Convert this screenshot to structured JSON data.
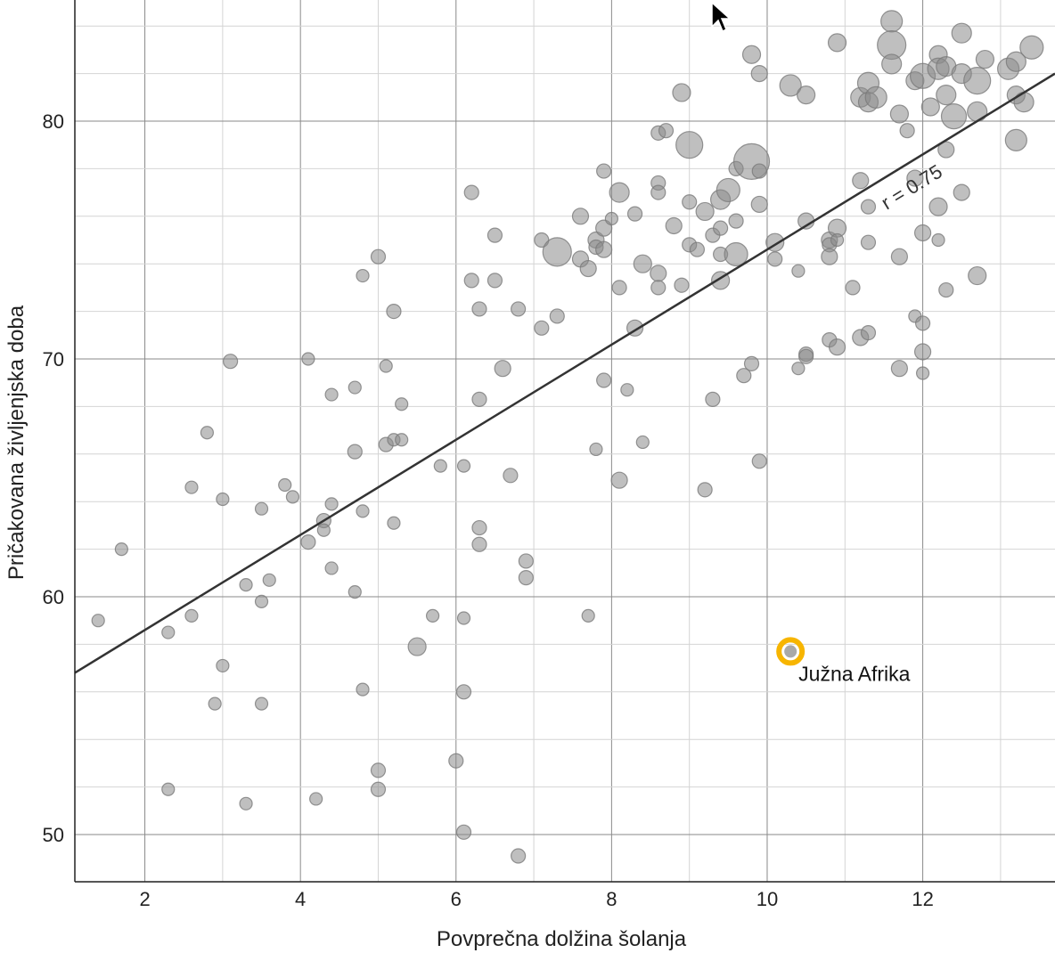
{
  "chart_data": {
    "type": "scatter",
    "xlabel": "Povprečna dolžina šolanja",
    "ylabel": "Pričakovana življenjska doba",
    "xlim": [
      1.1,
      13.7
    ],
    "ylim": [
      48,
      85
    ],
    "xticks": [
      2,
      4,
      6,
      8,
      10,
      12
    ],
    "yticks": [
      50,
      60,
      70,
      80
    ],
    "x_minor_step": 1,
    "y_minor_step": 2,
    "grid": true,
    "trendline": {
      "from": [
        1.1,
        56.8
      ],
      "to": [
        13.7,
        82
      ],
      "label": "r = 0.75"
    },
    "highlight": {
      "label": "Južna Afrika",
      "x": 10.3,
      "y": 57.7,
      "color": "#f7b500"
    },
    "points": [
      [
        1.4,
        59,
        7
      ],
      [
        1.7,
        62,
        7
      ],
      [
        2.3,
        58.5,
        7
      ],
      [
        2.3,
        51.9,
        7
      ],
      [
        2.6,
        64.6,
        7
      ],
      [
        2.6,
        59.2,
        7
      ],
      [
        2.8,
        66.9,
        7
      ],
      [
        2.9,
        55.5,
        7
      ],
      [
        3.0,
        64.1,
        7
      ],
      [
        3.0,
        57.1,
        7
      ],
      [
        3.1,
        69.9,
        8
      ],
      [
        3.3,
        60.5,
        7
      ],
      [
        3.3,
        51.3,
        7
      ],
      [
        3.5,
        63.7,
        7
      ],
      [
        3.5,
        59.8,
        7
      ],
      [
        3.5,
        55.5,
        7
      ],
      [
        3.6,
        60.7,
        7
      ],
      [
        3.8,
        64.7,
        7
      ],
      [
        3.9,
        64.2,
        7
      ],
      [
        4.1,
        70,
        7
      ],
      [
        4.1,
        62.3,
        8
      ],
      [
        4.2,
        51.5,
        7
      ],
      [
        4.3,
        63.2,
        8
      ],
      [
        4.3,
        62.8,
        7
      ],
      [
        4.4,
        68.5,
        7
      ],
      [
        4.4,
        63.9,
        7
      ],
      [
        4.4,
        61.2,
        7
      ],
      [
        4.7,
        68.8,
        7
      ],
      [
        4.7,
        66.1,
        8
      ],
      [
        4.7,
        60.2,
        7
      ],
      [
        4.8,
        73.5,
        7
      ],
      [
        4.8,
        63.6,
        7
      ],
      [
        4.8,
        56.1,
        7
      ],
      [
        5.0,
        74.3,
        8
      ],
      [
        5.0,
        52.7,
        8
      ],
      [
        5.0,
        51.9,
        8
      ],
      [
        5.1,
        69.7,
        7
      ],
      [
        5.1,
        66.4,
        8
      ],
      [
        5.2,
        72,
        8
      ],
      [
        5.2,
        66.6,
        7
      ],
      [
        5.2,
        63.1,
        7
      ],
      [
        5.3,
        68.1,
        7
      ],
      [
        5.3,
        66.6,
        7
      ],
      [
        5.5,
        57.9,
        10
      ],
      [
        5.7,
        59.2,
        7
      ],
      [
        5.8,
        65.5,
        7
      ],
      [
        6.0,
        53.1,
        8
      ],
      [
        6.1,
        65.5,
        7
      ],
      [
        6.1,
        59.1,
        7
      ],
      [
        6.1,
        56,
        8
      ],
      [
        6.1,
        50.1,
        8
      ],
      [
        6.2,
        77,
        8
      ],
      [
        6.2,
        73.3,
        8
      ],
      [
        6.3,
        72.1,
        8
      ],
      [
        6.3,
        68.3,
        8
      ],
      [
        6.3,
        62.9,
        8
      ],
      [
        6.3,
        62.2,
        8
      ],
      [
        6.5,
        75.2,
        8
      ],
      [
        6.5,
        73.3,
        8
      ],
      [
        6.6,
        69.6,
        9
      ],
      [
        6.7,
        65.1,
        8
      ],
      [
        6.8,
        72.1,
        8
      ],
      [
        6.8,
        49.1,
        8
      ],
      [
        6.9,
        61.5,
        8
      ],
      [
        6.9,
        60.8,
        8
      ],
      [
        7.1,
        75,
        8
      ],
      [
        7.1,
        71.3,
        8
      ],
      [
        7.3,
        71.8,
        8
      ],
      [
        7.3,
        74.5,
        16
      ],
      [
        7.6,
        76,
        9
      ],
      [
        7.6,
        74.2,
        9
      ],
      [
        7.7,
        73.8,
        9
      ],
      [
        7.7,
        59.2,
        7
      ],
      [
        7.8,
        75,
        9
      ],
      [
        7.8,
        74.7,
        8
      ],
      [
        7.8,
        66.2,
        7
      ],
      [
        7.9,
        77.9,
        8
      ],
      [
        7.9,
        75.5,
        9
      ],
      [
        7.9,
        74.6,
        9
      ],
      [
        7.9,
        69.1,
        8
      ],
      [
        8.0,
        75.9,
        7
      ],
      [
        8.1,
        77,
        11
      ],
      [
        8.1,
        73,
        8
      ],
      [
        8.1,
        64.9,
        9
      ],
      [
        8.2,
        68.7,
        7
      ],
      [
        8.3,
        76.1,
        8
      ],
      [
        8.3,
        71.3,
        9
      ],
      [
        8.4,
        74,
        10
      ],
      [
        8.4,
        66.5,
        7
      ],
      [
        8.6,
        79.5,
        8
      ],
      [
        8.6,
        77.4,
        8
      ],
      [
        8.6,
        77,
        8
      ],
      [
        8.6,
        73.6,
        9
      ],
      [
        8.6,
        73,
        8
      ],
      [
        8.7,
        79.6,
        8
      ],
      [
        8.8,
        75.6,
        9
      ],
      [
        8.9,
        81.2,
        10
      ],
      [
        8.9,
        73.1,
        8
      ],
      [
        9.0,
        79,
        15
      ],
      [
        9.0,
        76.6,
        8
      ],
      [
        9.0,
        74.8,
        8
      ],
      [
        9.1,
        74.6,
        8
      ],
      [
        9.2,
        76.2,
        10
      ],
      [
        9.2,
        64.5,
        8
      ],
      [
        9.3,
        75.2,
        8
      ],
      [
        9.3,
        68.3,
        8
      ],
      [
        9.4,
        76.7,
        11
      ],
      [
        9.4,
        75.5,
        8
      ],
      [
        9.4,
        74.4,
        8
      ],
      [
        9.4,
        73.3,
        10
      ],
      [
        9.5,
        77.1,
        13
      ],
      [
        9.6,
        78,
        8
      ],
      [
        9.6,
        75.8,
        8
      ],
      [
        9.6,
        74.4,
        13
      ],
      [
        9.7,
        69.3,
        8
      ],
      [
        9.8,
        82.8,
        10
      ],
      [
        9.8,
        78.3,
        20
      ],
      [
        9.8,
        69.8,
        8
      ],
      [
        9.9,
        82,
        9
      ],
      [
        9.9,
        77.9,
        8
      ],
      [
        9.9,
        76.5,
        9
      ],
      [
        9.9,
        65.7,
        8
      ],
      [
        10.1,
        74.9,
        10
      ],
      [
        10.1,
        74.2,
        8
      ],
      [
        10.3,
        81.5,
        12
      ],
      [
        10.4,
        73.7,
        7
      ],
      [
        10.4,
        69.6,
        7
      ],
      [
        10.5,
        81.1,
        10
      ],
      [
        10.5,
        75.8,
        9
      ],
      [
        10.5,
        70.2,
        8
      ],
      [
        10.5,
        70.1,
        8
      ],
      [
        10.8,
        75,
        9
      ],
      [
        10.8,
        74.8,
        8
      ],
      [
        10.8,
        74.3,
        9
      ],
      [
        10.8,
        70.8,
        8
      ],
      [
        10.9,
        83.3,
        10
      ],
      [
        10.9,
        75.5,
        10
      ],
      [
        10.9,
        75,
        7
      ],
      [
        10.9,
        70.5,
        9
      ],
      [
        11.1,
        73,
        8
      ],
      [
        11.2,
        81,
        11
      ],
      [
        11.2,
        77.5,
        9
      ],
      [
        11.2,
        70.9,
        9
      ],
      [
        11.3,
        81.6,
        12
      ],
      [
        11.3,
        80.8,
        11
      ],
      [
        11.3,
        76.4,
        8
      ],
      [
        11.3,
        74.9,
        8
      ],
      [
        11.3,
        71.1,
        8
      ],
      [
        11.4,
        81,
        12
      ],
      [
        11.6,
        84.2,
        12
      ],
      [
        11.6,
        83.2,
        16
      ],
      [
        11.6,
        82.4,
        11
      ],
      [
        11.7,
        80.3,
        10
      ],
      [
        11.7,
        74.3,
        9
      ],
      [
        11.7,
        69.6,
        9
      ],
      [
        11.8,
        79.6,
        8
      ],
      [
        11.9,
        81.7,
        10
      ],
      [
        11.9,
        77.6,
        9
      ],
      [
        11.9,
        71.8,
        7
      ],
      [
        12.0,
        81.9,
        14
      ],
      [
        12.0,
        75.3,
        9
      ],
      [
        12.0,
        71.5,
        8
      ],
      [
        12.0,
        70.3,
        9
      ],
      [
        12.0,
        69.4,
        7
      ],
      [
        12.1,
        80.6,
        10
      ],
      [
        12.2,
        82.8,
        10
      ],
      [
        12.2,
        82.2,
        12
      ],
      [
        12.2,
        76.4,
        10
      ],
      [
        12.2,
        75,
        7
      ],
      [
        12.3,
        82.3,
        11
      ],
      [
        12.3,
        81.1,
        11
      ],
      [
        12.3,
        78.8,
        9
      ],
      [
        12.3,
        72.9,
        8
      ],
      [
        12.4,
        80.2,
        14
      ],
      [
        12.5,
        83.7,
        11
      ],
      [
        12.5,
        82,
        11
      ],
      [
        12.5,
        77,
        9
      ],
      [
        12.7,
        81.7,
        15
      ],
      [
        12.7,
        80.4,
        11
      ],
      [
        12.7,
        73.5,
        10
      ],
      [
        12.8,
        82.6,
        10
      ],
      [
        13.1,
        82.2,
        12
      ],
      [
        13.2,
        82.5,
        11
      ],
      [
        13.2,
        81.1,
        10
      ],
      [
        13.2,
        79.2,
        12
      ],
      [
        13.3,
        80.8,
        11
      ],
      [
        13.4,
        83.1,
        13
      ]
    ]
  }
}
